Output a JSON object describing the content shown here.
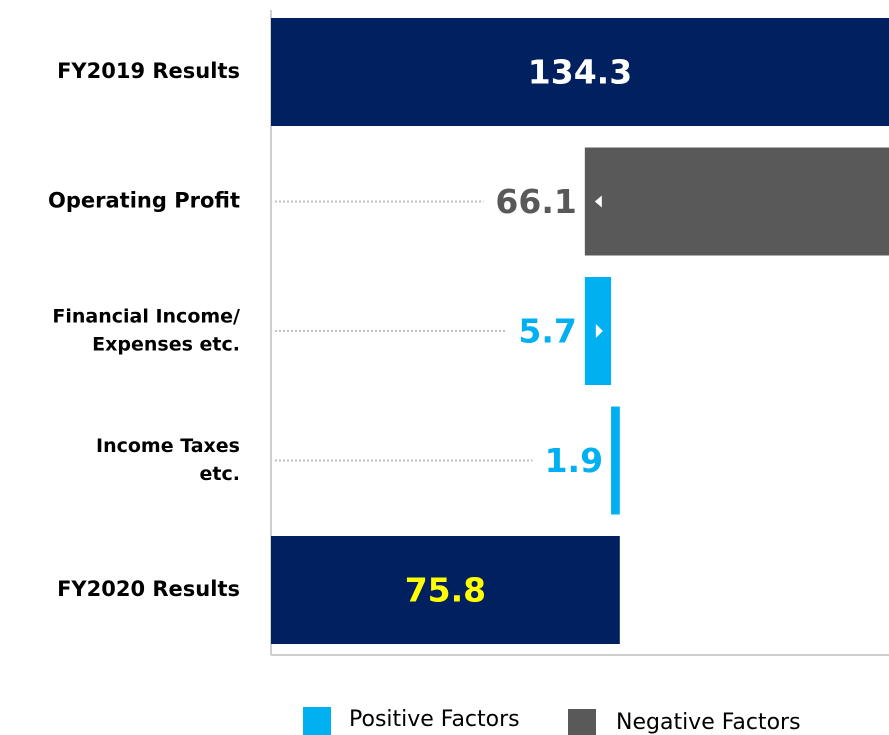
{
  "chart_data": {
    "type": "waterfall",
    "categories": [
      [
        "FY2019 Results"
      ],
      [
        "Operating Profit"
      ],
      [
        "Financial Income/",
        "Expenses etc."
      ],
      [
        "Income Taxes",
        "etc."
      ],
      [
        "FY2020 Results"
      ]
    ],
    "values": [
      134.3,
      -66.1,
      5.7,
      1.9,
      75.8
    ],
    "value_labels": [
      "134.3",
      "66.1",
      "5.7",
      "1.9",
      "75.8"
    ],
    "measure": [
      "absolute",
      "relative",
      "relative",
      "relative",
      "total"
    ],
    "total_color": "#002060",
    "value_label_colors": [
      "#ffffff",
      "#595959",
      "#00b0f0",
      "#00b0f0",
      "#ffff00"
    ],
    "xlim": [
      0,
      134.3
    ],
    "legend": [
      {
        "name": "Positive Factors",
        "color": "#00b0f0"
      },
      {
        "name": "Negative Factors",
        "color": "#595959"
      }
    ]
  }
}
